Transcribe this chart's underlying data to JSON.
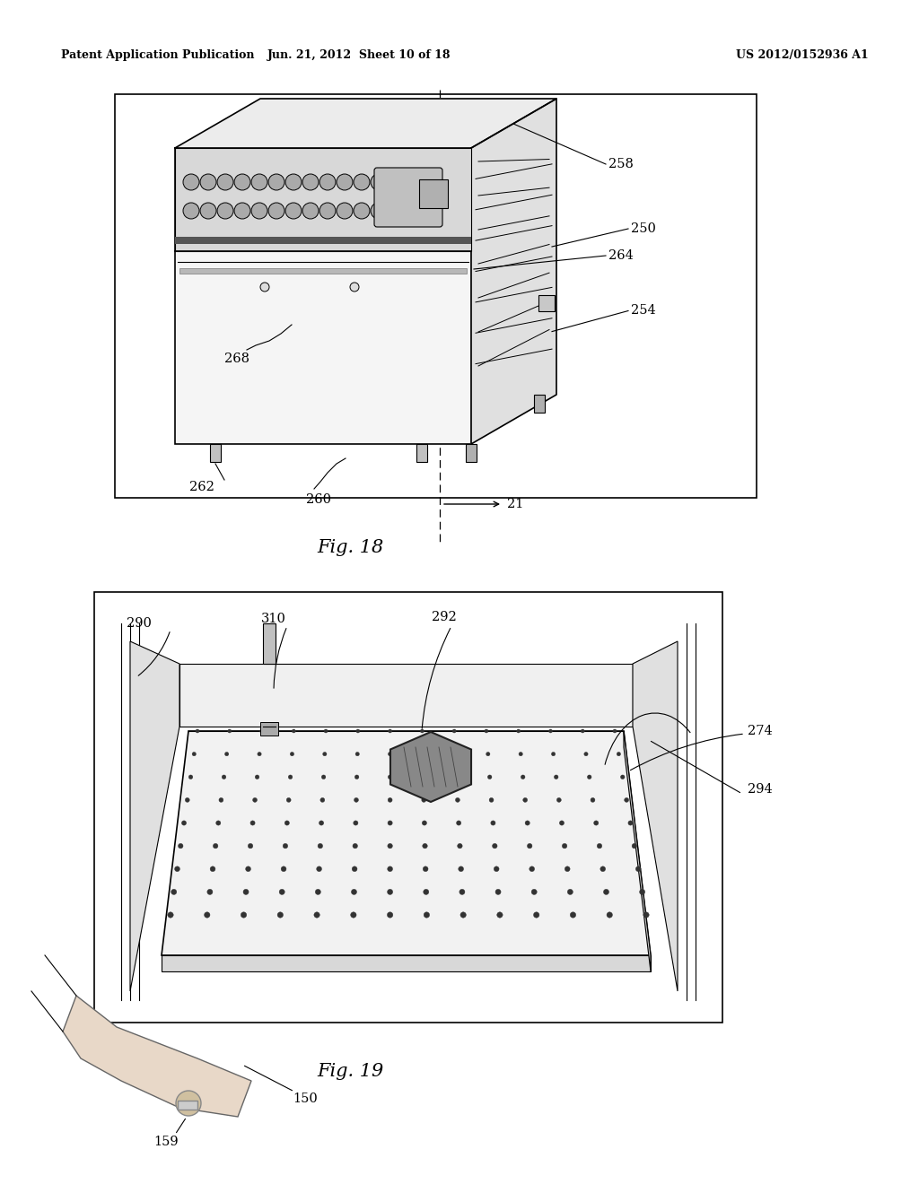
{
  "bg_color": "#ffffff",
  "header_left": "Patent Application Publication",
  "header_mid": "Jun. 21, 2012  Sheet 10 of 18",
  "header_right": "US 2012/0152936 A1",
  "fig18_title": "Fig. 18",
  "fig19_title": "Fig. 19"
}
